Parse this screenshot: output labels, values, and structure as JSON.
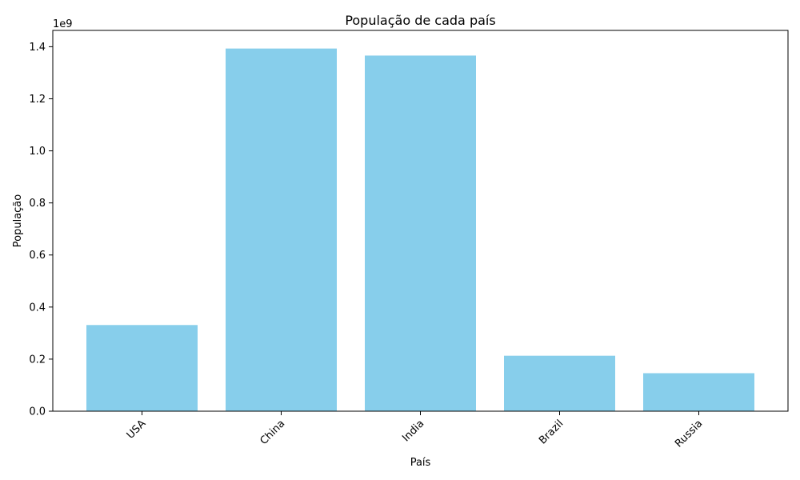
{
  "chart_data": {
    "type": "bar",
    "title": "População de cada país",
    "xlabel": "País",
    "ylabel": "População",
    "offset_label": "1e9",
    "categories": [
      "USA",
      "China",
      "India",
      "Brazil",
      "Russia"
    ],
    "values": [
      331000000,
      1393000000,
      1366000000,
      213000000,
      146000000
    ],
    "ylim": [
      0,
      1462650000
    ],
    "yticks": [
      0,
      200000000,
      400000000,
      600000000,
      800000000,
      1000000000,
      1200000000,
      1400000000
    ],
    "ytick_labels": [
      "0.0",
      "0.2",
      "0.4",
      "0.6",
      "0.8",
      "1.0",
      "1.2",
      "1.4"
    ],
    "xtick_rotation_deg": 45,
    "bar_color": "#87ceeb",
    "grid": false,
    "legend": "none"
  }
}
